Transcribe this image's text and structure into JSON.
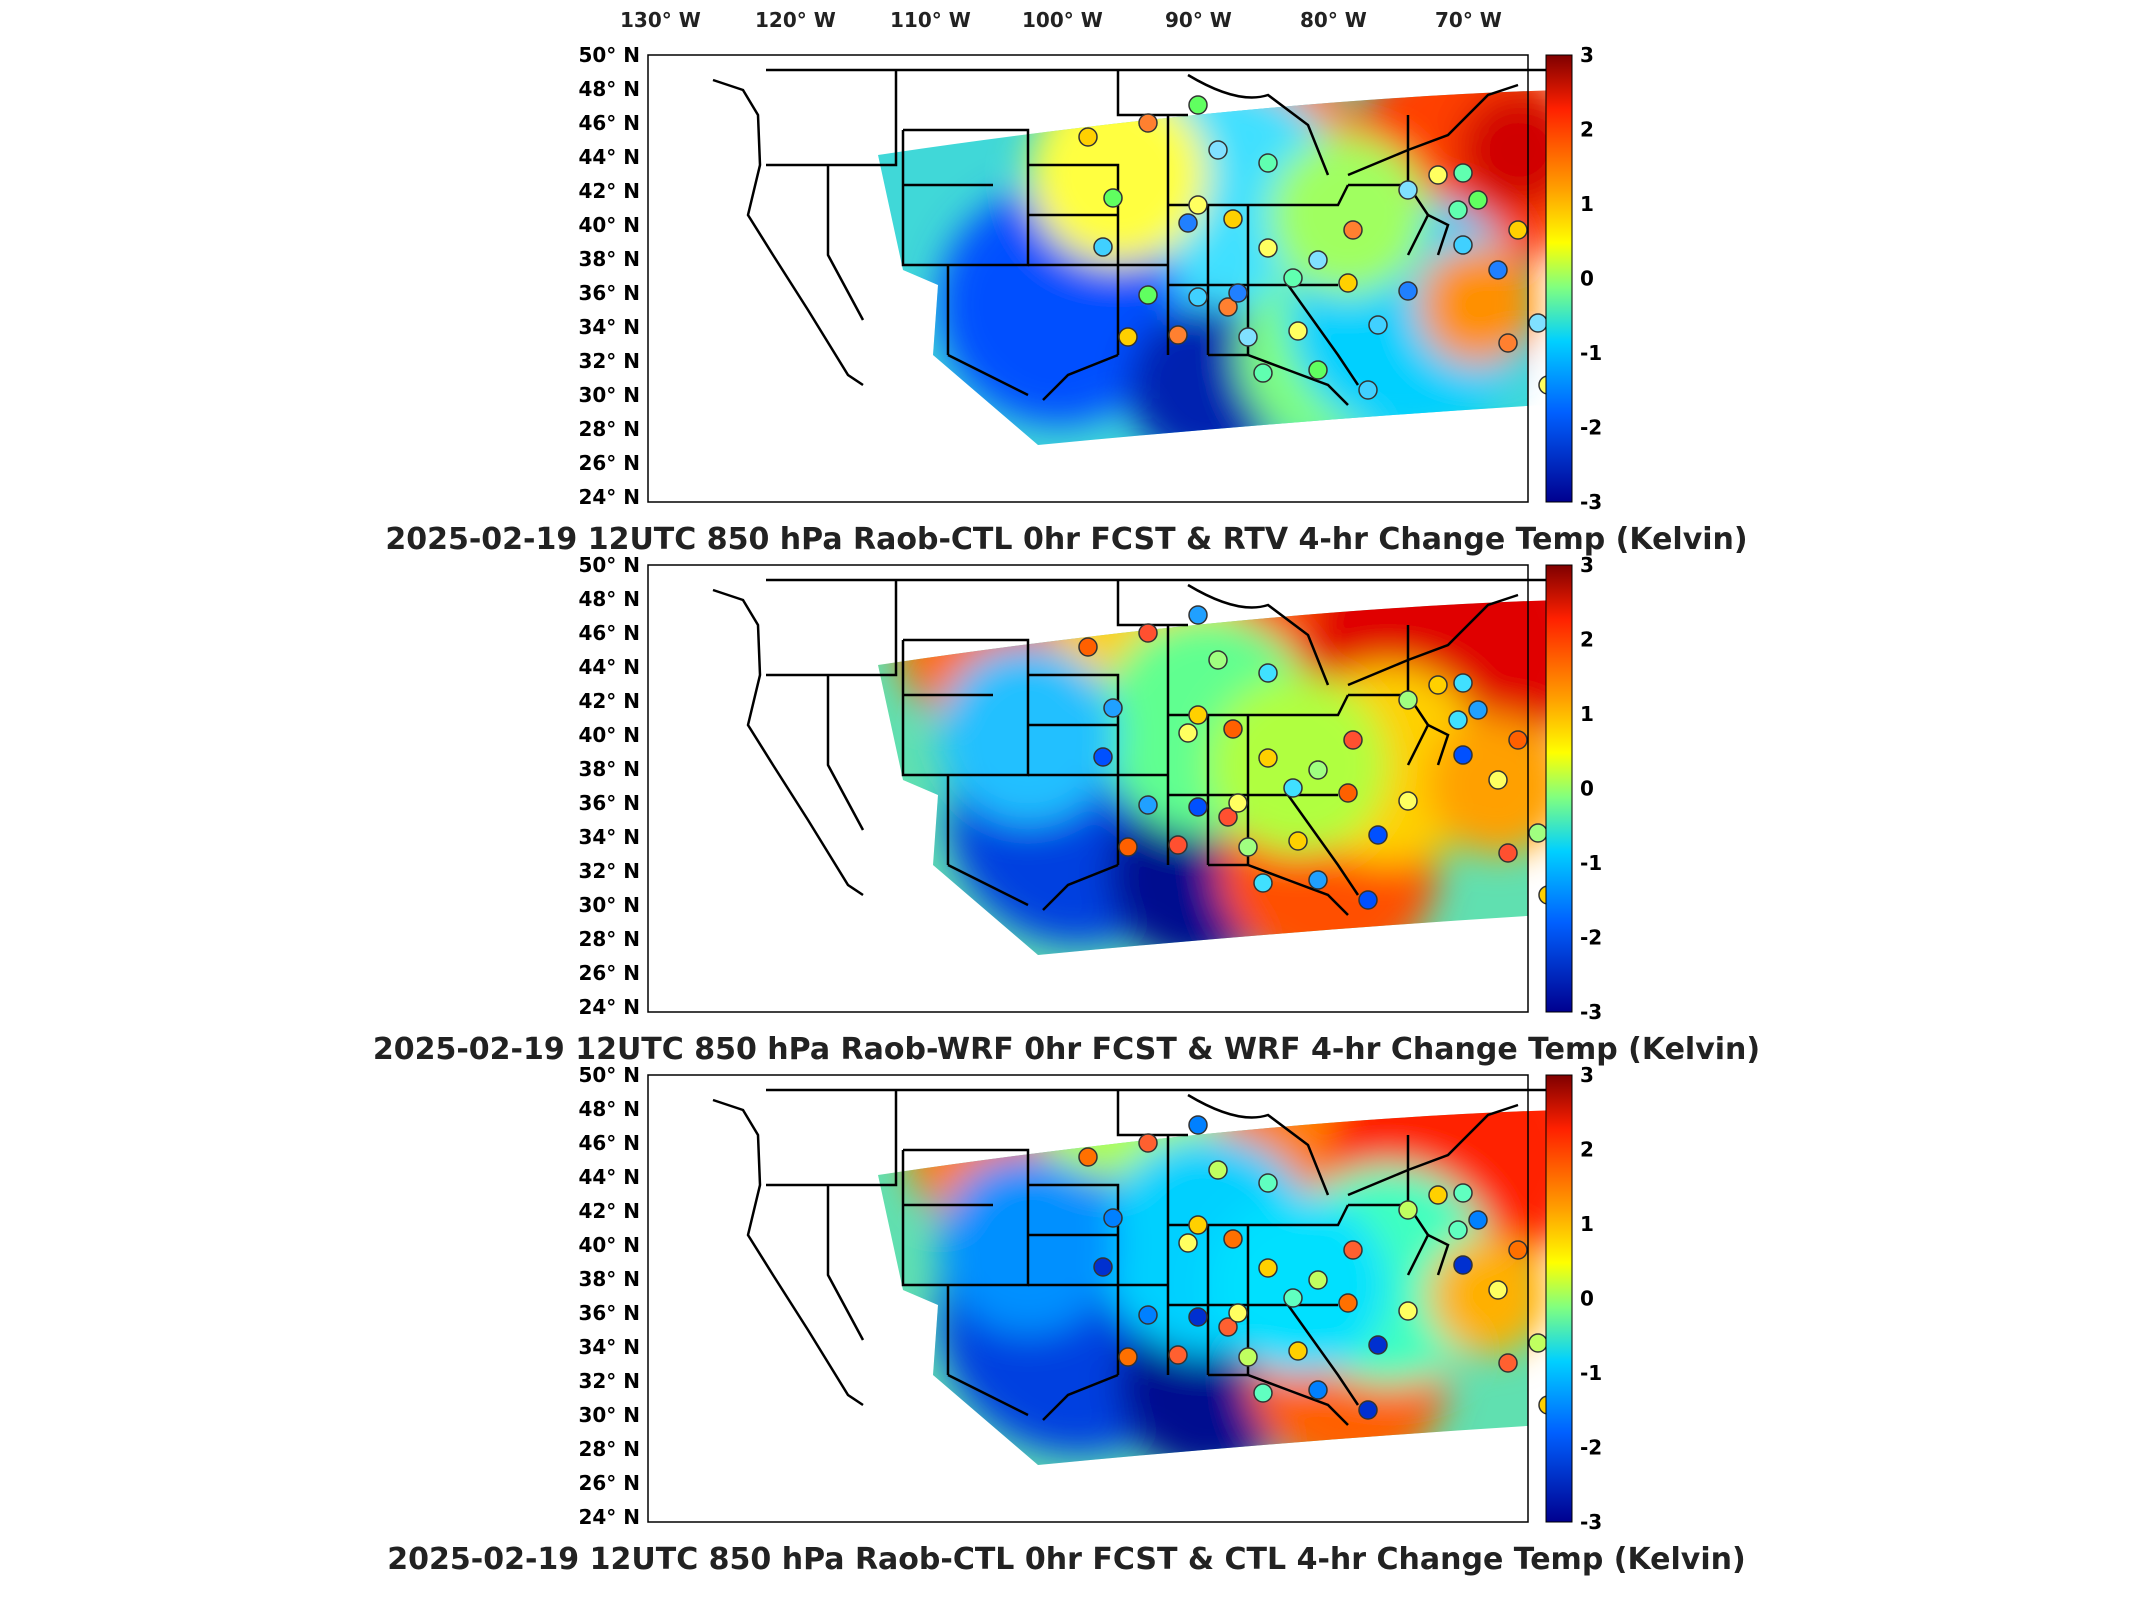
{
  "longitude_labels": [
    "130° W",
    "120° W",
    "110° W",
    "100° W",
    "90° W",
    "80° W",
    "70° W"
  ],
  "latitude_labels": [
    "50° N",
    "48° N",
    "46° N",
    "44° N",
    "42° N",
    "40° N",
    "38° N",
    "36° N",
    "34° N",
    "32° N",
    "30° N",
    "28° N",
    "26° N",
    "24° N"
  ],
  "colorbar": {
    "ticks": [
      "3",
      "2",
      "1",
      "0",
      "-1",
      "-2",
      "-3"
    ],
    "colors": [
      "#7f0000",
      "#ff2000",
      "#ffa000",
      "#ffff00",
      "#80ff80",
      "#00d0ff",
      "#0060ff",
      "#00008f"
    ]
  },
  "panels": [
    {
      "title": "2025-02-19 12UTC 850 hPa Raob-CTL 0hr FCST & RTV 4-hr Change Temp (Kelvin)"
    },
    {
      "title": "2025-02-19 12UTC 850 hPa Raob-WRF 0hr FCST & WRF 4-hr Change Temp (Kelvin)"
    },
    {
      "title": "2025-02-19 12UTC 850 hPa Raob-CTL 0hr FCST & CTL 4-hr Change Temp (Kelvin)"
    }
  ]
}
